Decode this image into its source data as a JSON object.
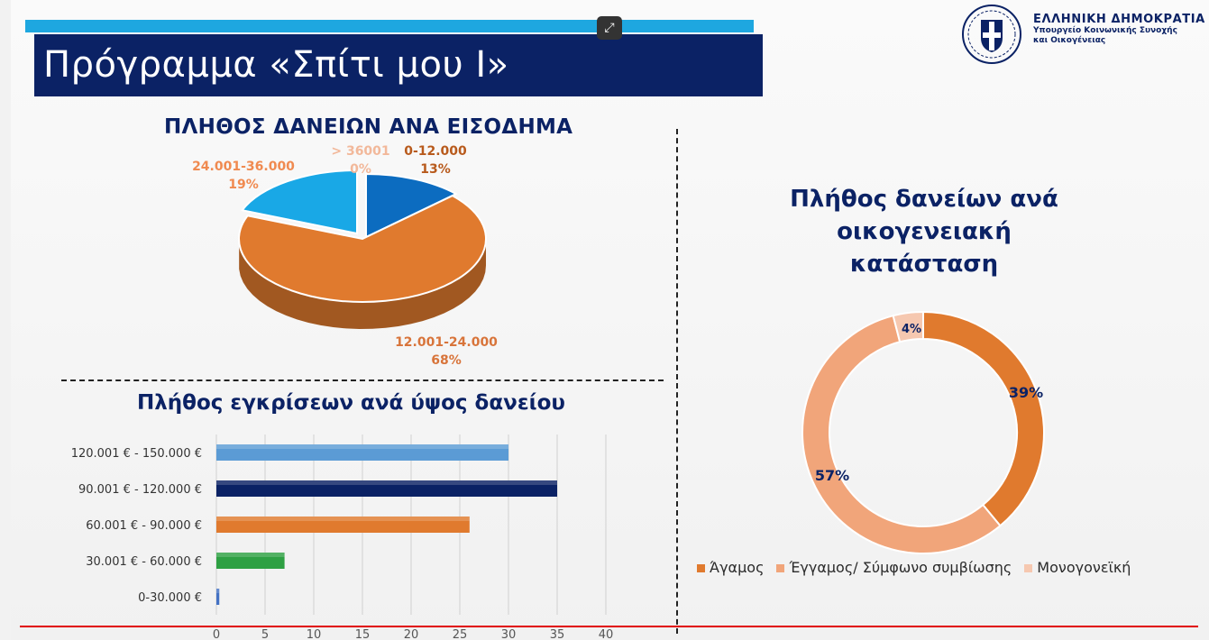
{
  "header": {
    "title": "Πρόγραμμα «Σπίτι μου Ι»",
    "org_line1": "ΕΛΛΗΝΙΚΗ ΔΗΜΟΚΡΑΤΙΑ",
    "org_line2": "Υπουργείο Κοινωνικής Συνοχής",
    "org_line3": "και Οικογένειας"
  },
  "colors": {
    "navy": "#0b2265",
    "accent_blue": "#1ea7e0",
    "orange": "#e07a2e",
    "light_orange": "#f1a57a",
    "pale": "#f6c8b0",
    "bar_lightblue": "#5b9bd5",
    "bar_green": "#2ea043",
    "bar_blue": "#4472c4"
  },
  "chart_data": [
    {
      "type": "pie",
      "title": "ΠΛΗΘΟΣ ΔΑΝΕΙΩΝ ΑΝΑ ΕΙΣΟΔΗΜΑ",
      "slices": [
        {
          "label": "0-12.000",
          "value": 13,
          "pct_label": "13%",
          "color": "#0c6cc0"
        },
        {
          "label": "12.001-24.000",
          "value": 68,
          "pct_label": "68%",
          "color": "#e07a2e"
        },
        {
          "label": "24.001-36.000",
          "value": 19,
          "pct_label": "19%",
          "color": "#19a8e6"
        },
        {
          "label": "> 36001",
          "value": 0,
          "pct_label": "0%",
          "color": "#f6c8b0"
        }
      ]
    },
    {
      "type": "bar",
      "orientation": "horizontal",
      "title": "Πλήθος εγκρίσεων ανά ύψος δανείου",
      "categories": [
        "120.001 € - 150.000 €",
        "90.001 € - 120.000 €",
        "60.001 € - 90.000 €",
        "30.001 € - 60.000 €",
        "0-30.000 €"
      ],
      "values": [
        30,
        35,
        26,
        7,
        0.3
      ],
      "colors": [
        "#5b9bd5",
        "#0b2265",
        "#e07a2e",
        "#2ea043",
        "#4472c4"
      ],
      "xlim": [
        0,
        40
      ],
      "xticks": [
        "0",
        "5",
        "10",
        "15",
        "20",
        "25",
        "30",
        "35",
        "40"
      ],
      "grid": true
    },
    {
      "type": "pie",
      "subtype": "donut",
      "title": "Πλήθος δανείων ανά οικογενειακή κατάσταση",
      "slices": [
        {
          "label": "Άγαμος",
          "value": 39,
          "pct_label": "39%",
          "color": "#e07a2e"
        },
        {
          "label": "Έγγαμος/ Σύμφωνο συμβίωσης",
          "value": 57,
          "pct_label": "57%",
          "color": "#f1a57a"
        },
        {
          "label": "Μονογονεϊκή",
          "value": 4,
          "pct_label": "4%",
          "color": "#f6c8b0"
        }
      ],
      "legend": "bottom"
    }
  ]
}
